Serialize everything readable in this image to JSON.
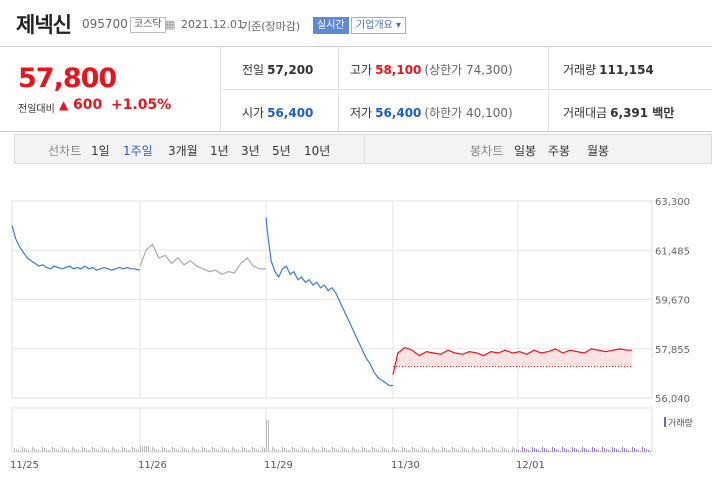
{
  "header": {
    "name": "제넥신",
    "code": "095700",
    "market": "코스닥",
    "date": "2021.12.01",
    "basis": "기준(장마감)",
    "realtime_label": "실시간",
    "overview_label": "기업개요 ▾"
  },
  "current": {
    "price": "57,800",
    "compare_label": "전일대비",
    "arrow": "▲",
    "change": "600",
    "percent": "+1.05%"
  },
  "quote": {
    "prev_label": "전일",
    "prev": "57,200",
    "high_label": "고가",
    "high": "58,100",
    "upper_limit": "(상한가 74,300)",
    "volume_label": "거래량",
    "volume": "111,154",
    "open_label": "시가",
    "open": "56,400",
    "low_label": "저가",
    "low": "56,400",
    "lower_limit": "(하한가 40,100)",
    "amount_label": "거래대금",
    "amount": "6,391 백만"
  },
  "tabs": {
    "line_label": "선차트",
    "periods": [
      "1일",
      "1주일",
      "3개월",
      "1년",
      "3년",
      "5년",
      "10년"
    ],
    "selected_period": "1주일",
    "candle_label": "봉차트",
    "candles": [
      "일봉",
      "주봉",
      "월봉"
    ]
  },
  "colors": {
    "up": "#e8141d",
    "down": "#1a5fc8",
    "line_blue": "#3a7bd5",
    "line_gray": "#aaaaaa",
    "line_red": "#e8141d"
  },
  "chart_data": {
    "type": "line",
    "y_ticks": [
      "63,300",
      "61,485",
      "59,670",
      "57,855",
      "56,040"
    ],
    "ylim": [
      56040,
      63300
    ],
    "x_labels": [
      "11/25",
      "11/26",
      "11/29",
      "11/30",
      "12/01"
    ],
    "volume_label": "거래량",
    "prev_close": 57200,
    "series": [
      {
        "name": "",
        "color": "blue",
        "x": [
          0.0,
          0.03,
          0.06,
          0.09,
          0.12,
          0.15,
          0.18,
          0.21,
          0.24,
          0.27,
          0.3,
          0.33,
          0.36,
          0.39,
          0.42,
          0.45,
          0.48,
          0.51,
          0.54,
          0.57,
          0.6,
          0.63,
          0.66,
          0.69,
          0.72,
          0.75,
          0.78,
          0.81,
          0.84,
          0.87,
          0.9,
          0.93,
          0.96,
          1.0
        ],
        "values": [
          62400,
          61900,
          61600,
          61400,
          61200,
          61100,
          61000,
          60900,
          60950,
          60850,
          60800,
          60900,
          60850,
          60800,
          60850,
          60900,
          60800,
          60850,
          60800,
          60900,
          60800,
          60850,
          60750,
          60800,
          60850,
          60800,
          60750,
          60800,
          60850,
          60800,
          60850,
          60800,
          60800,
          60750
        ]
      },
      {
        "name": "",
        "color": "gray",
        "x": [
          0.0,
          0.05,
          0.1,
          0.15,
          0.2,
          0.25,
          0.3,
          0.35,
          0.4,
          0.45,
          0.5,
          0.55,
          0.6,
          0.65,
          0.7,
          0.75,
          0.8,
          0.85,
          0.9,
          0.95,
          1.0
        ],
        "values": [
          60900,
          61500,
          61700,
          61200,
          61300,
          61000,
          61200,
          60950,
          61100,
          60900,
          60800,
          60700,
          60750,
          60600,
          60700,
          60650,
          61000,
          61200,
          60900,
          60800,
          60800
        ]
      },
      {
        "name": "",
        "color": "blue",
        "x": [
          0.0,
          0.01,
          0.04,
          0.07,
          0.1,
          0.13,
          0.16,
          0.19,
          0.22,
          0.25,
          0.28,
          0.31,
          0.34,
          0.37,
          0.4,
          0.43,
          0.46,
          0.49,
          0.52,
          0.55,
          0.58,
          0.61,
          0.64,
          0.67,
          0.7,
          0.73,
          0.76,
          0.79,
          0.82,
          0.85,
          0.88,
          0.91,
          0.94,
          0.97,
          1.0
        ],
        "values": [
          62700,
          62200,
          61100,
          60700,
          60500,
          60800,
          60900,
          60600,
          60700,
          60400,
          60500,
          60300,
          60400,
          60200,
          60300,
          60100,
          60200,
          60000,
          60100,
          59900,
          59600,
          59300,
          59000,
          58700,
          58400,
          58100,
          57800,
          57500,
          57300,
          57000,
          56800,
          56700,
          56600,
          56500,
          56500
        ]
      },
      {
        "name": "",
        "color": "red",
        "x": [
          0.0,
          0.02,
          0.05,
          0.08,
          0.11,
          0.14,
          0.17,
          0.2,
          0.23,
          0.26,
          0.29,
          0.32,
          0.35,
          0.38,
          0.41,
          0.44,
          0.47,
          0.5,
          0.53,
          0.56,
          0.59,
          0.62,
          0.65,
          0.68,
          0.71,
          0.74,
          0.77,
          0.8,
          0.83,
          0.86,
          0.89,
          0.92,
          0.95,
          0.98,
          1.0
        ],
        "values": [
          56900,
          57700,
          57900,
          57800,
          57600,
          57750,
          57700,
          57650,
          57800,
          57700,
          57650,
          57750,
          57700,
          57600,
          57750,
          57700,
          57800,
          57700,
          57750,
          57650,
          57800,
          57700,
          57750,
          57850,
          57700,
          57800,
          57750,
          57700,
          57850,
          57800,
          57750,
          57800,
          57850,
          57800,
          57800
        ]
      }
    ]
  }
}
